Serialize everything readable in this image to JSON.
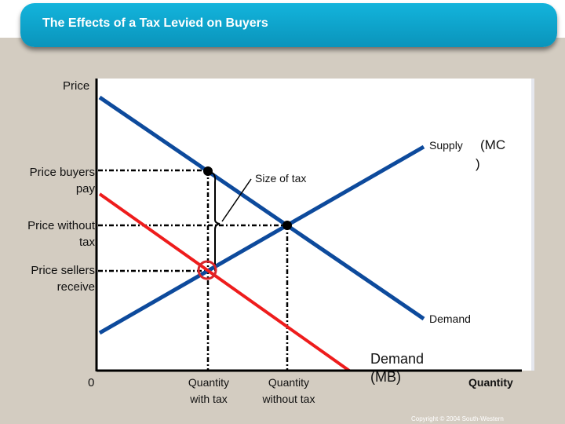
{
  "title": "The Effects of a Tax Levied on Buyers",
  "chart_data": {
    "type": "line",
    "title": "The Effects of a Tax Levied on Buyers",
    "ylabel": "Price",
    "xlabel": "Quantity",
    "origin_label": "0",
    "series": [
      {
        "name": "Supply",
        "label": "Supply",
        "extra_label": "(MC)",
        "color": "#0d4a9c"
      },
      {
        "name": "Demand",
        "label": "Demand",
        "color": "#0d4a9c"
      },
      {
        "name": "Demand (MB)",
        "label": "Demand (MB)",
        "color": "#ee1c1c"
      }
    ],
    "y_labels": {
      "price_buyers_pay": "Price buyers pay",
      "price_without_tax": "Price without tax",
      "price_sellers_receive": "Price sellers receive"
    },
    "x_labels": {
      "quantity_with_tax": "Quantity with tax",
      "quantity_without_tax": "Quantity without tax"
    },
    "annotation": "Size of tax",
    "mc_open": "(MC",
    "mc_close": ")",
    "demand_mb_1": "Demand",
    "demand_mb_2": "(MB)"
  },
  "copyright": "Copyright © 2004  South-Western"
}
